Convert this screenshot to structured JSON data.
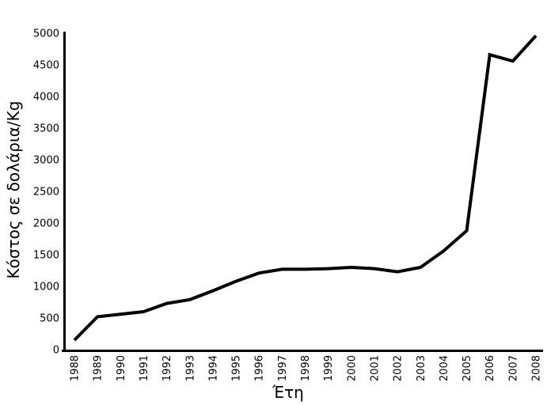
{
  "chart_data": {
    "type": "line",
    "title": "",
    "xlabel": "Έτη",
    "ylabel": "Κόστος σε δολάρια/Kg",
    "categories": [
      "1988",
      "1989",
      "1990",
      "1991",
      "1992",
      "1993",
      "1994",
      "1995",
      "1996",
      "1997",
      "1998",
      "1999",
      "2000",
      "2001",
      "2002",
      "2003",
      "2004",
      "2005",
      "2006",
      "2007",
      "2008"
    ],
    "values": [
      150,
      520,
      560,
      600,
      730,
      790,
      930,
      1080,
      1210,
      1270,
      1270,
      1280,
      1300,
      1280,
      1230,
      1300,
      1560,
      1880,
      4660,
      4560,
      4960
    ],
    "ylim": [
      0,
      5000
    ],
    "yticks": [
      0,
      500,
      1000,
      1500,
      2000,
      2500,
      3000,
      3500,
      4000,
      4500,
      5000
    ],
    "grid": false,
    "legend": "none",
    "line_color": "#000000",
    "line_width": 4,
    "axis_color": "#000000",
    "background_color": "#ffffff"
  }
}
